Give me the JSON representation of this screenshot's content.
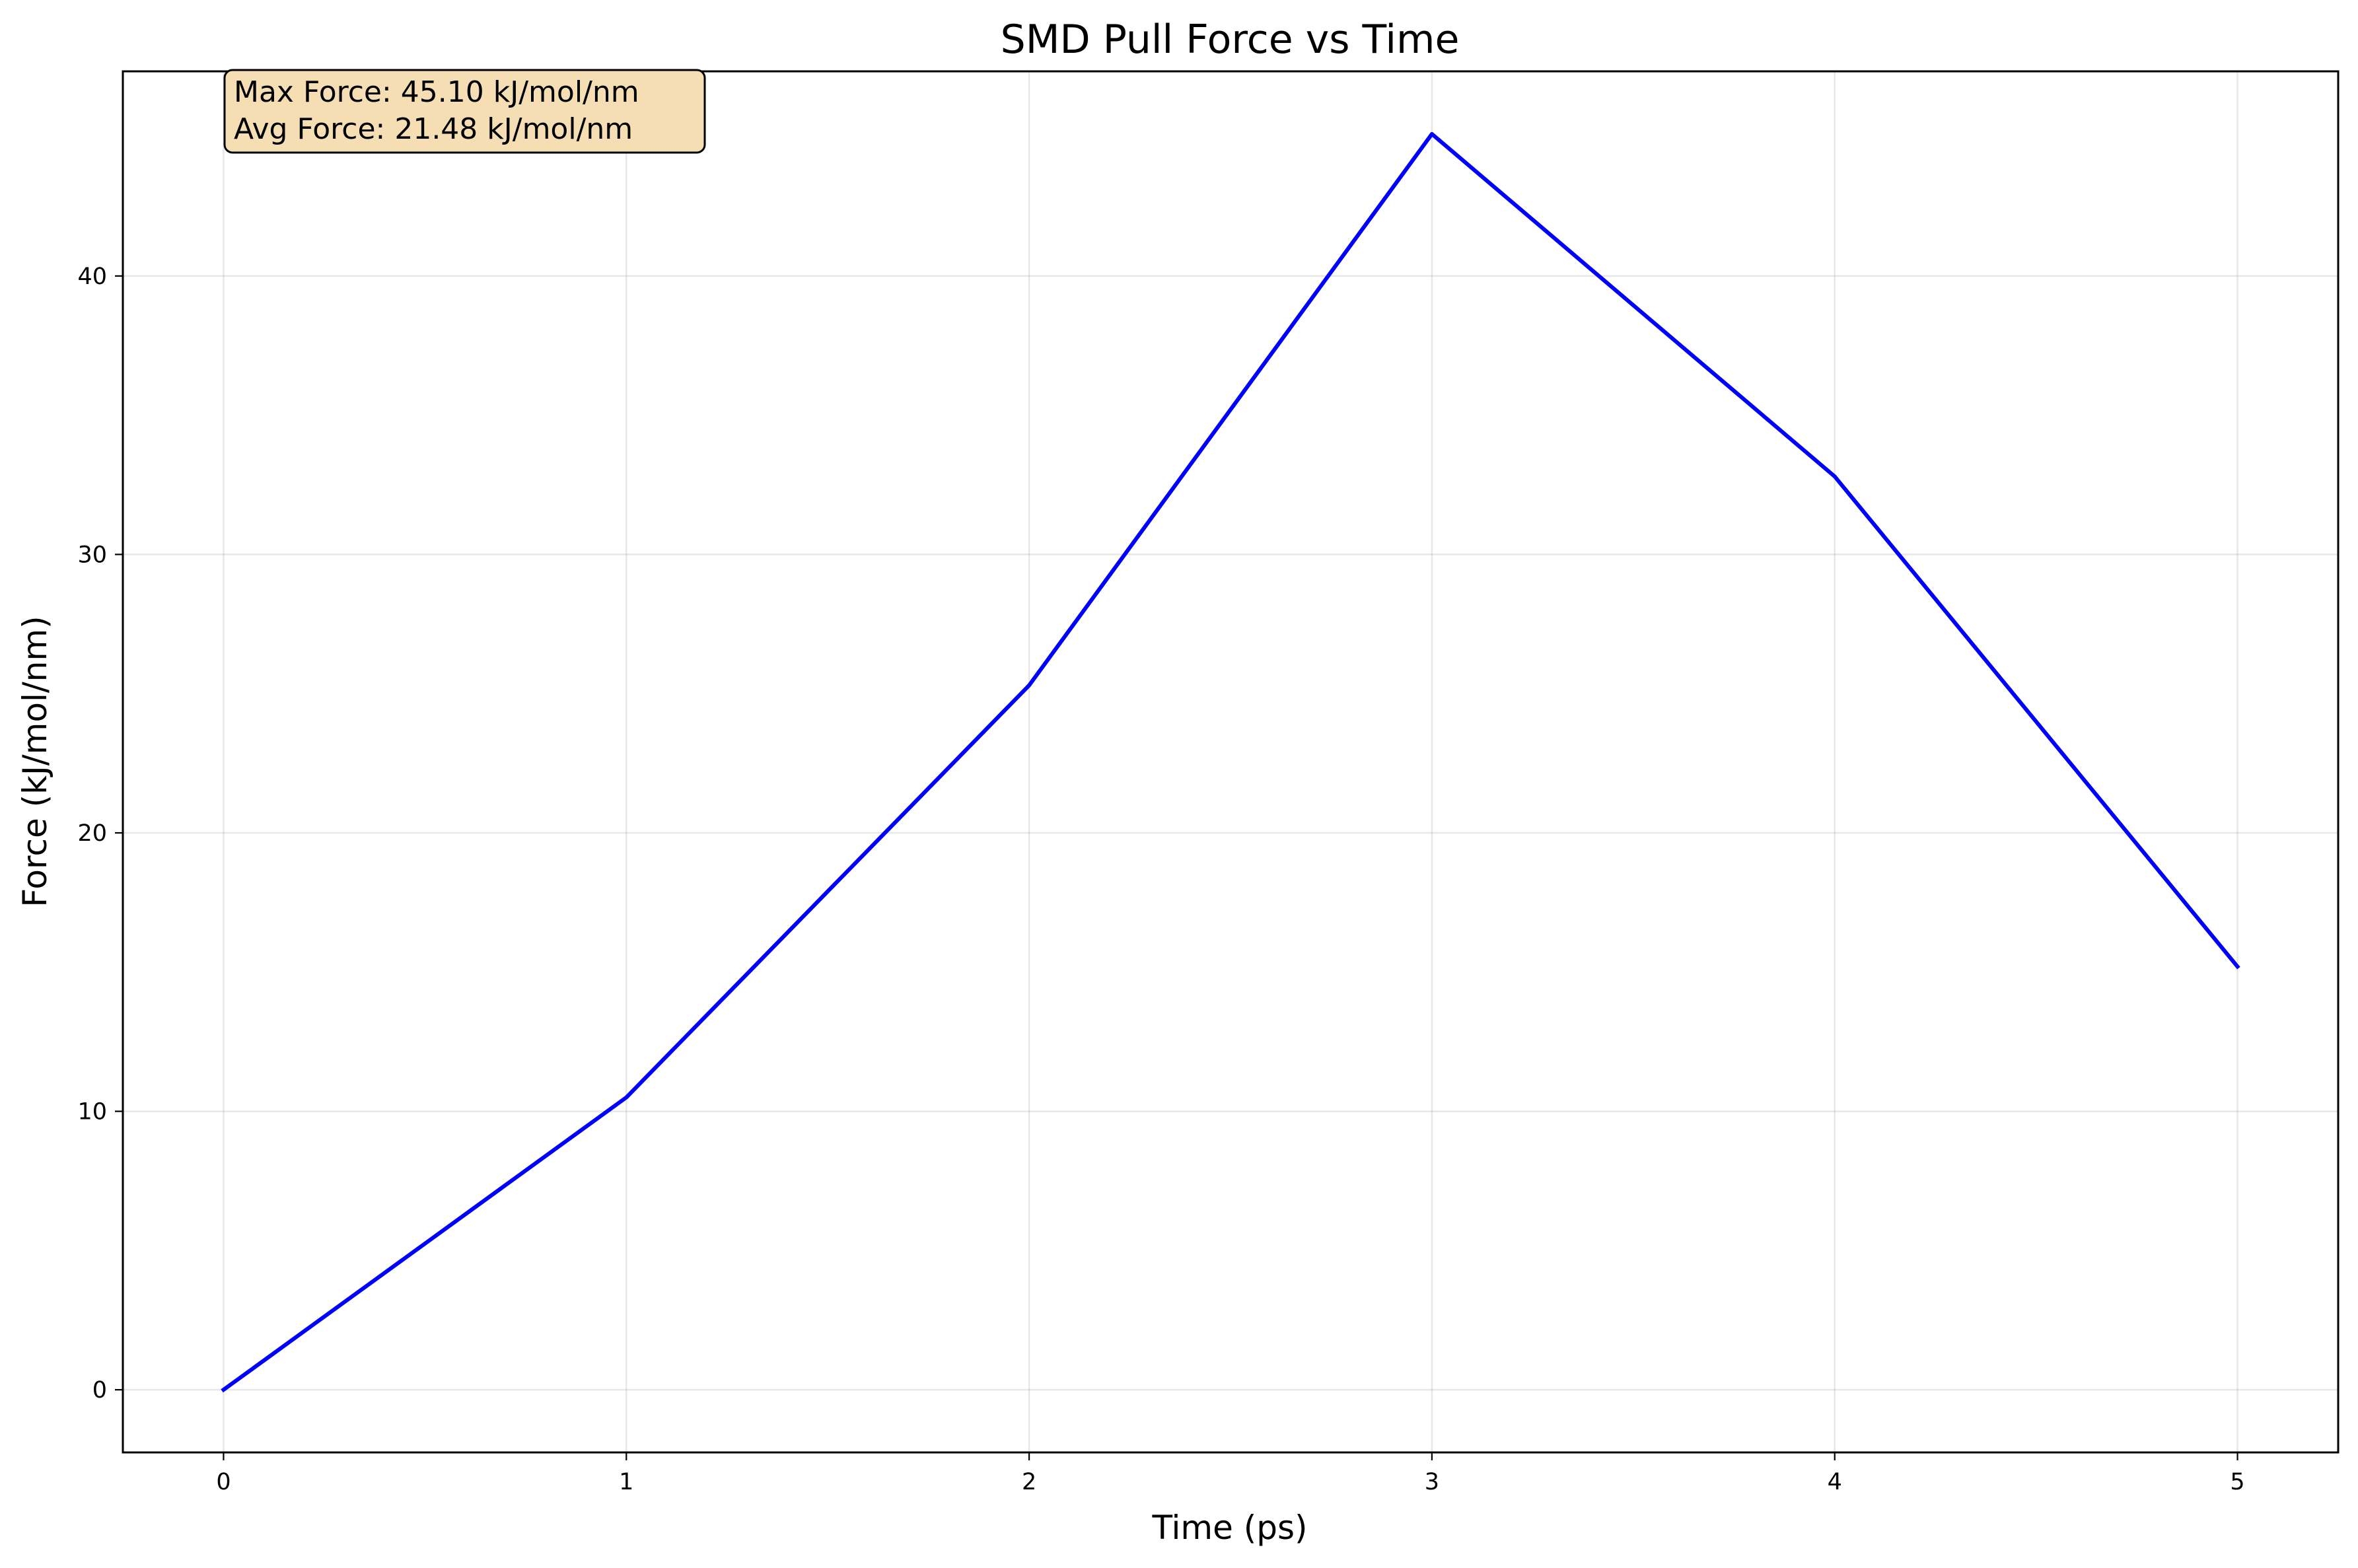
{
  "chart_data": {
    "type": "line",
    "title": "SMD Pull Force vs Time",
    "xlabel": "Time (ps)",
    "ylabel": "Force (kJ/mol/nm)",
    "x": [
      0,
      1,
      2,
      3,
      4,
      5
    ],
    "series": [
      {
        "values": [
          0.0,
          10.5,
          25.3,
          45.1,
          32.8,
          15.2
        ],
        "color": "#0000ff"
      }
    ],
    "xlim": [
      -0.25,
      5.25
    ],
    "ylim": [
      -2.25,
      47.35
    ],
    "xticks": [
      0,
      1,
      2,
      3,
      4,
      5
    ],
    "yticks": [
      0,
      10,
      20,
      30,
      40
    ],
    "grid": true,
    "annotation": {
      "lines": [
        "Max Force: 45.10 kJ/mol/nm",
        "Avg Force: 21.48 kJ/mol/nm"
      ],
      "background": "#f5deb3",
      "placement": "top-left"
    }
  }
}
